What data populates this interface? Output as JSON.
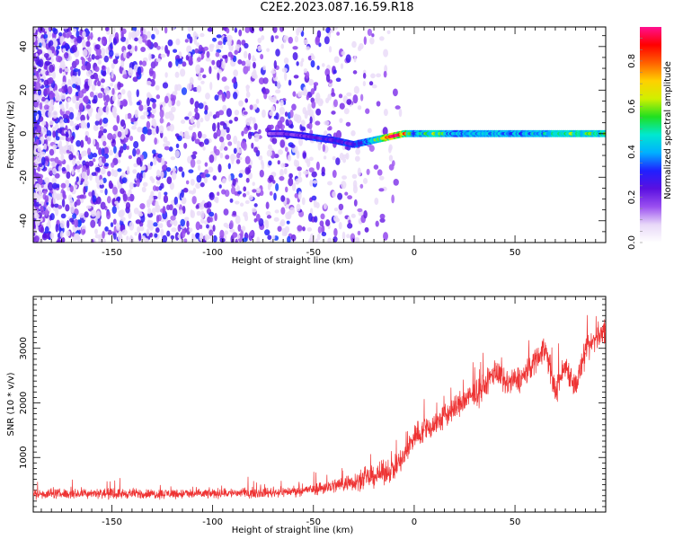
{
  "title": "C2E2.2023.087.16.59.R18",
  "chart_data": [
    {
      "type": "heatmap",
      "title": "",
      "xlabel": "Height of straight line (km)",
      "ylabel": "Frequency (Hz)",
      "xlim": [
        -189,
        95
      ],
      "ylim": [
        -50,
        49
      ],
      "xticks": [
        -150,
        -100,
        -50,
        0,
        50
      ],
      "yticks": [
        -40,
        -20,
        0,
        20,
        40
      ],
      "colorbar": {
        "label": "Normalized spectral amplitude",
        "range": [
          0,
          0.95
        ],
        "ticks": [
          0.0,
          0.2,
          0.4,
          0.6,
          0.8
        ],
        "colormap": [
          "#ffffff",
          "#e8d8f8",
          "#9a4ff0",
          "#5a10e0",
          "#2020ff",
          "#00b0ff",
          "#00e8d0",
          "#20e020",
          "#d0f000",
          "#ffd000",
          "#ff6000",
          "#ff0000",
          "#ff1090"
        ]
      },
      "noise_region_x": [
        -189,
        -20
      ],
      "signal_trace": {
        "x": [
          -72,
          -65,
          -55,
          -48,
          -40,
          -35,
          -30,
          -25,
          -20,
          -15,
          -10,
          -5,
          0,
          10,
          20,
          30,
          40,
          50,
          60,
          70,
          80,
          95
        ],
        "freq": [
          0,
          0,
          -1,
          -2,
          -3,
          -4,
          -5,
          -4,
          -3,
          -2,
          -1,
          0,
          0,
          0,
          0,
          0,
          0,
          0,
          0,
          0,
          0,
          0
        ],
        "amplitude": [
          0.15,
          0.18,
          0.2,
          0.25,
          0.22,
          0.25,
          0.25,
          0.3,
          0.45,
          0.6,
          0.85,
          0.7,
          0.35,
          0.55,
          0.35,
          0.4,
          0.4,
          0.38,
          0.4,
          0.45,
          0.5,
          0.45
        ]
      }
    },
    {
      "type": "line",
      "title": "",
      "xlabel": "Height of straight line (km)",
      "ylabel": "SNR (10 * v/v)",
      "xlim": [
        -189,
        95
      ],
      "ylim": [
        0,
        3950
      ],
      "xticks": [
        -150,
        -100,
        -50,
        0,
        50
      ],
      "yticks": [
        1000,
        2000,
        3000
      ],
      "series": [
        {
          "color": "#ee3333",
          "x": [
            -189,
            -180,
            -170,
            -160,
            -150,
            -140,
            -130,
            -120,
            -110,
            -100,
            -90,
            -80,
            -70,
            -60,
            -50,
            -40,
            -30,
            -20,
            -10,
            -5,
            0,
            5,
            10,
            15,
            20,
            25,
            30,
            35,
            40,
            45,
            50,
            55,
            60,
            65,
            70,
            75,
            80,
            85,
            90,
            95
          ],
          "y": [
            330,
            340,
            330,
            350,
            330,
            340,
            330,
            340,
            330,
            340,
            350,
            350,
            360,
            380,
            420,
            480,
            560,
            650,
            800,
            1000,
            1400,
            1500,
            1600,
            1750,
            1900,
            2050,
            2150,
            2300,
            2600,
            2350,
            2400,
            2500,
            2800,
            3000,
            2200,
            2700,
            2300,
            2900,
            3200,
            3300
          ]
        }
      ]
    }
  ]
}
